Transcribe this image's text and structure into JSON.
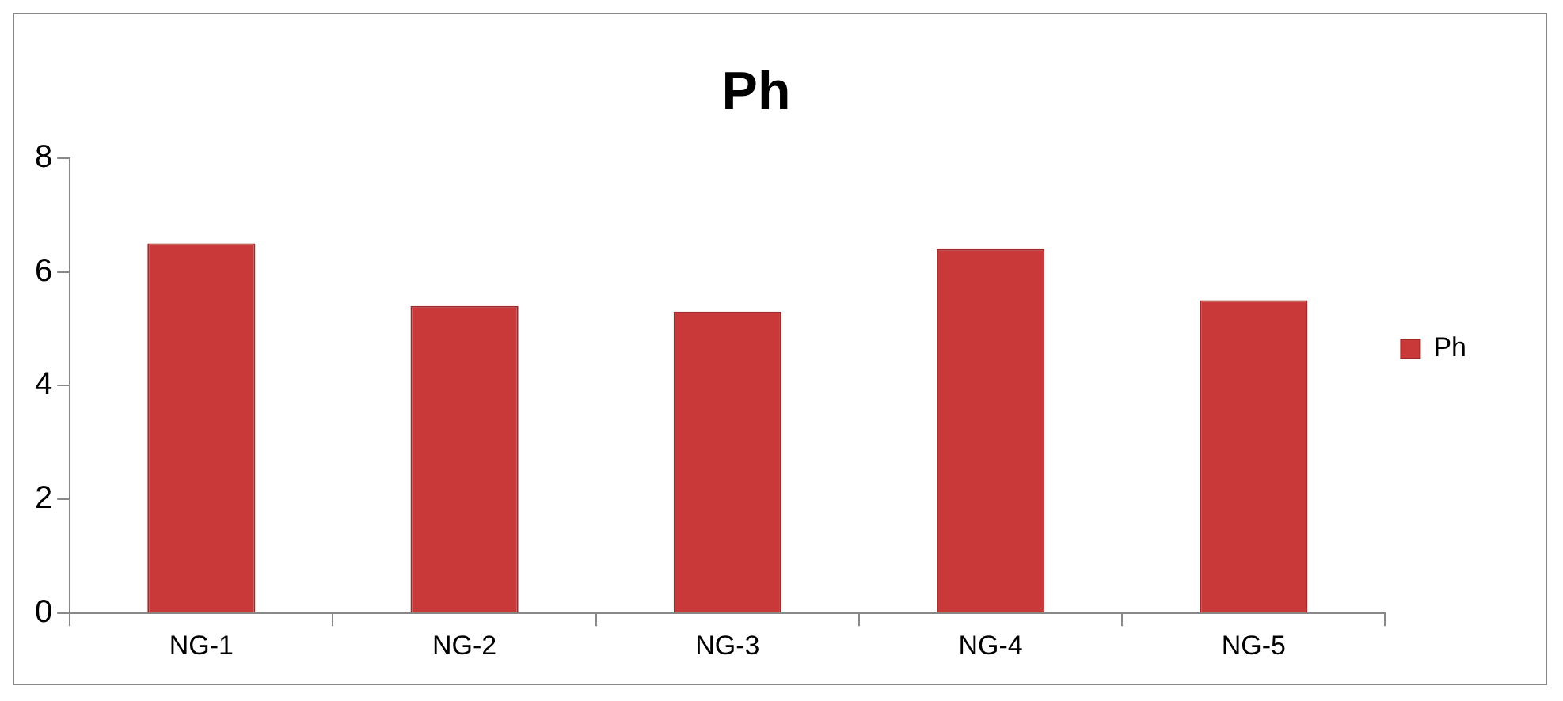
{
  "chart_data": {
    "type": "bar",
    "title": "Ph",
    "categories": [
      "NG-1",
      "NG-2",
      "NG-3",
      "NG-4",
      "NG-5"
    ],
    "series": [
      {
        "name": "Ph",
        "color": "#c9393a",
        "values": [
          6.5,
          5.4,
          5.3,
          6.4,
          5.5
        ]
      }
    ],
    "ylim": [
      0,
      8
    ],
    "yticks": [
      0,
      2,
      4,
      6,
      8
    ],
    "grid": false,
    "legend": "right"
  }
}
